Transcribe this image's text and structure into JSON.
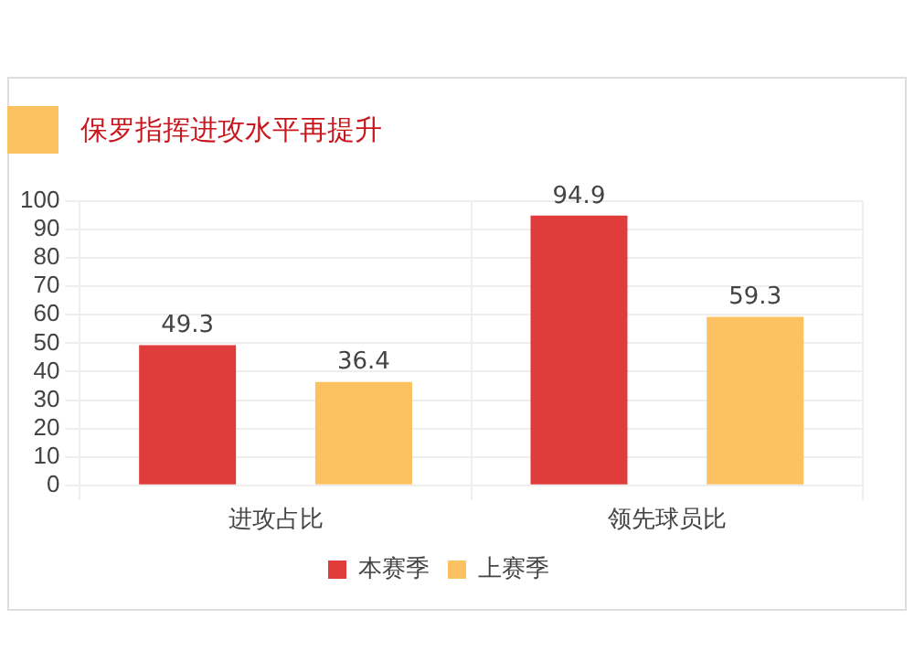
{
  "chart_data": {
    "type": "bar",
    "title": "保罗指挥进攻水平再提升",
    "categories": [
      "进攻占比",
      "领先球员比"
    ],
    "series": [
      {
        "name": "本赛季",
        "color": "#e03c3c",
        "values": [
          49.3,
          94.9
        ]
      },
      {
        "name": "上赛季",
        "color": "#fcc160",
        "values": [
          36.4,
          59.3
        ]
      }
    ],
    "ylim": [
      0,
      100
    ],
    "yticks": [
      0,
      10,
      20,
      30,
      40,
      50,
      60,
      70,
      80,
      90,
      100
    ],
    "grid": true,
    "legend": "bottom",
    "data_labels": true
  }
}
